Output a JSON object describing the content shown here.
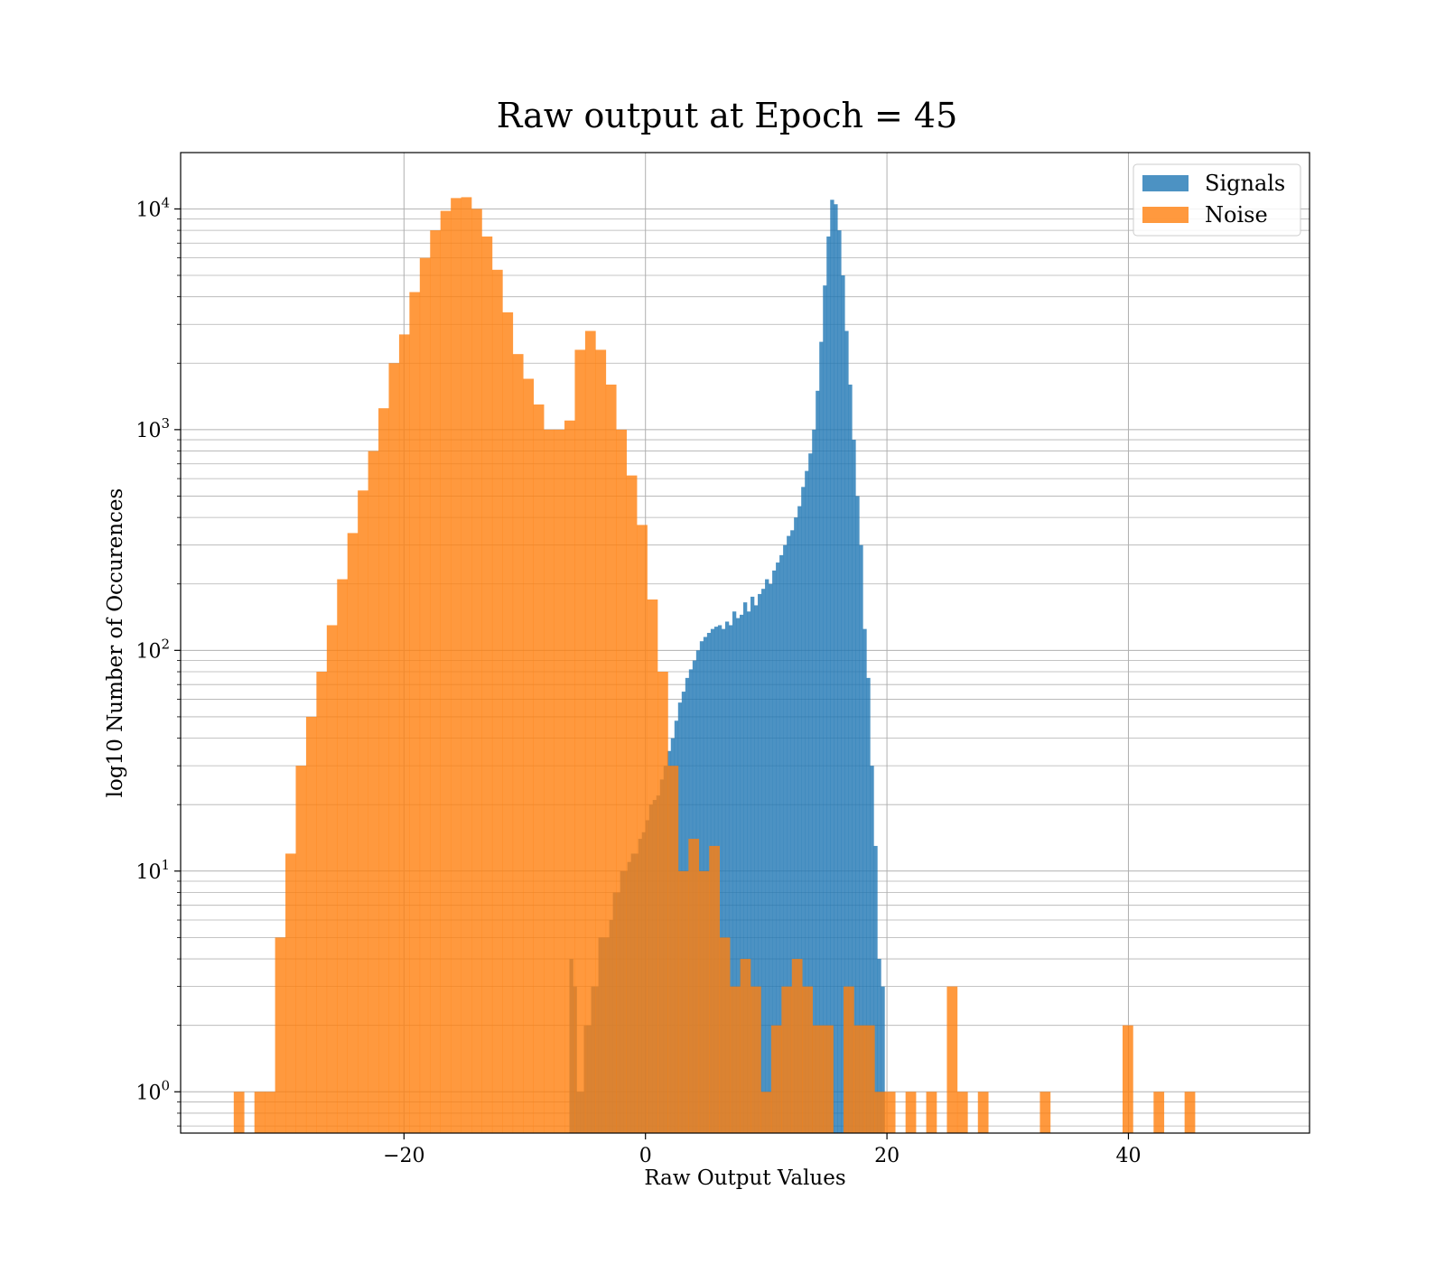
{
  "chart_data": {
    "type": "bar",
    "title": "Raw output at Epoch = 45",
    "xlabel": "Raw Output Values",
    "ylabel": "log10 Number of Occurences",
    "xlim": [
      -38.5,
      55
    ],
    "ylim": [
      0.65,
      18000
    ],
    "yscale": "log",
    "grid": true,
    "legend_position": "top-right",
    "x_ticks": [
      -20,
      0,
      20,
      40
    ],
    "x_tick_labels": [
      "−20",
      "0",
      "20",
      "40"
    ],
    "y_ticks": [
      1,
      10,
      100,
      1000,
      10000
    ],
    "y_tick_bases": [
      "10",
      "10",
      "10",
      "10",
      "10"
    ],
    "y_tick_exponents": [
      "0",
      "1",
      "2",
      "3",
      "4"
    ],
    "colors": {
      "Signals": "#1f77b4",
      "Noise": "#ff7f0e"
    },
    "series": [
      {
        "name": "Signals",
        "bin_start": -6.3,
        "bin_width": 0.3,
        "values": [
          4,
          3,
          1,
          1,
          2,
          2,
          3,
          3,
          5,
          5,
          5,
          6,
          8,
          8,
          10,
          10,
          11,
          12,
          12,
          14,
          15,
          17,
          20,
          21,
          22,
          26,
          30,
          35,
          40,
          48,
          58,
          65,
          75,
          82,
          90,
          100,
          110,
          115,
          120,
          125,
          128,
          130,
          125,
          135,
          130,
          150,
          140,
          145,
          165,
          150,
          175,
          160,
          180,
          190,
          210,
          200,
          230,
          250,
          270,
          300,
          330,
          350,
          400,
          450,
          550,
          650,
          780,
          1000,
          1500,
          2500,
          4500,
          7500,
          11000,
          10500,
          8000,
          5000,
          2800,
          1600,
          900,
          500,
          300,
          125,
          75,
          30,
          13,
          4,
          3
        ]
      },
      {
        "name": "Noise",
        "bin_start": -34.1,
        "bin_width": 0.856,
        "values": [
          1,
          0,
          1,
          1,
          5,
          12,
          30,
          50,
          80,
          130,
          210,
          340,
          530,
          800,
          1250,
          2000,
          2700,
          4200,
          6000,
          8000,
          9800,
          11200,
          11300,
          10000,
          7500,
          5300,
          3400,
          2200,
          1700,
          1300,
          1000,
          1000,
          1100,
          2300,
          2800,
          2300,
          1600,
          1000,
          620,
          370,
          170,
          80,
          30,
          10,
          14,
          10,
          13,
          5,
          3,
          4,
          3,
          1,
          2,
          3,
          4,
          3,
          2,
          2,
          0,
          3,
          2,
          2,
          1,
          1,
          0,
          1,
          0,
          1,
          0,
          3,
          1,
          0,
          1,
          0,
          0,
          0,
          0,
          0,
          1,
          0,
          0,
          0,
          0,
          0,
          0,
          0,
          2,
          0,
          0,
          1,
          0,
          0,
          1
        ]
      }
    ]
  }
}
